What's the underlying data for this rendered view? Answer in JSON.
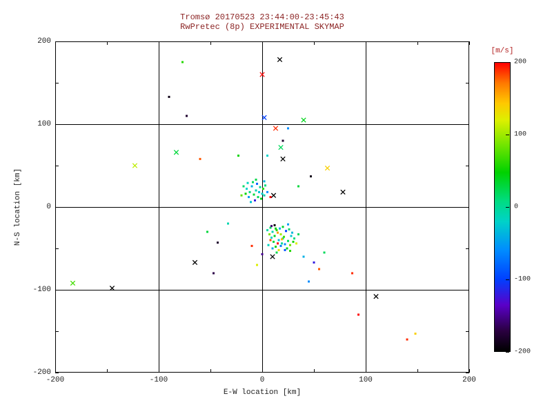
{
  "colors": {
    "background": "#ffffff",
    "title_color": "#8b2323",
    "axis_color": "#1c1c1c",
    "frame_color": "#000000",
    "colorbar_label_color": "#b22222"
  },
  "chart_data": {
    "type": "scatter",
    "title": "Tromsø 20170523 23:44:00-23:45:43",
    "subtitle": "RwPretec (8p) EXPERIMENTAL SKYMAP",
    "xlabel": "E-W location [km]",
    "ylabel": "N-S location [km]",
    "xlim": [
      -200,
      200
    ],
    "ylim": [
      -200,
      200
    ],
    "x_ticks": [
      -200,
      -100,
      0,
      100,
      200
    ],
    "y_ticks": [
      -200,
      -100,
      0,
      100,
      200
    ],
    "grid_lines": [
      -100,
      0,
      100
    ],
    "minor_tick_step": 50,
    "grid": true,
    "legend_position": "none",
    "colorbar": {
      "label": "[m/s]",
      "ticks": [
        200,
        100,
        0,
        -100,
        -200
      ],
      "vmin": -200,
      "vmax": 200
    },
    "colormap_stops": [
      [
        0.0,
        "#000000"
      ],
      [
        0.07,
        "#2a0040"
      ],
      [
        0.16,
        "#5a00c8"
      ],
      [
        0.25,
        "#0040ff"
      ],
      [
        0.35,
        "#008cff"
      ],
      [
        0.45,
        "#00d2c8"
      ],
      [
        0.52,
        "#00dc82"
      ],
      [
        0.62,
        "#00d200"
      ],
      [
        0.72,
        "#78e600"
      ],
      [
        0.8,
        "#dcf000"
      ],
      [
        0.86,
        "#ffc800"
      ],
      [
        0.93,
        "#ff7800"
      ],
      [
        1.0,
        "#ff0000"
      ]
    ],
    "points_format": [
      "x_km",
      "y_km",
      "velocity_ms",
      "marker"
    ],
    "points": [
      [
        17,
        178,
        -200,
        "x"
      ],
      [
        -77,
        175,
        60,
        "d"
      ],
      [
        0,
        160,
        200,
        "x"
      ],
      [
        -90,
        133,
        -190,
        "d"
      ],
      [
        -73,
        110,
        -180,
        "d"
      ],
      [
        2,
        108,
        -100,
        "x"
      ],
      [
        40,
        105,
        40,
        "x"
      ],
      [
        13,
        95,
        190,
        "x"
      ],
      [
        20,
        80,
        -180,
        "d"
      ],
      [
        -83,
        66,
        30,
        "x"
      ],
      [
        -60,
        58,
        180,
        "d"
      ],
      [
        -123,
        50,
        110,
        "x"
      ],
      [
        -23,
        62,
        50,
        "d"
      ],
      [
        18,
        72,
        20,
        "x"
      ],
      [
        20,
        58,
        -200,
        "x"
      ],
      [
        63,
        47,
        140,
        "x"
      ],
      [
        47,
        37,
        -190,
        "d"
      ],
      [
        78,
        18,
        -200,
        "x"
      ],
      [
        35,
        25,
        30,
        "d"
      ],
      [
        5,
        62,
        -20,
        "d"
      ],
      [
        25,
        95,
        -60,
        "d"
      ],
      [
        -15,
        22,
        -20,
        "d"
      ],
      [
        -12,
        18,
        10,
        "d"
      ],
      [
        -10,
        25,
        -40,
        "d"
      ],
      [
        -8,
        15,
        30,
        "d"
      ],
      [
        -6,
        20,
        -10,
        "d"
      ],
      [
        -5,
        28,
        -80,
        "d"
      ],
      [
        -4,
        12,
        20,
        "d"
      ],
      [
        -3,
        18,
        -30,
        "d"
      ],
      [
        -2,
        24,
        0,
        "d"
      ],
      [
        -1,
        10,
        40,
        "d"
      ],
      [
        0,
        16,
        -20,
        "d"
      ],
      [
        1,
        22,
        60,
        "d"
      ],
      [
        2,
        14,
        -10,
        "d"
      ],
      [
        -7,
        8,
        -120,
        "d"
      ],
      [
        -9,
        30,
        20,
        "d"
      ],
      [
        -13,
        12,
        -50,
        "d"
      ],
      [
        3,
        26,
        10,
        "d"
      ],
      [
        -16,
        16,
        50,
        "d"
      ],
      [
        -11,
        6,
        -30,
        "d"
      ],
      [
        5,
        18,
        -60,
        "d"
      ],
      [
        -18,
        25,
        15,
        "d"
      ],
      [
        -14,
        29,
        -15,
        "d"
      ],
      [
        -6,
        33,
        25,
        "d"
      ],
      [
        2,
        31,
        -35,
        "d"
      ],
      [
        -20,
        14,
        80,
        "d"
      ],
      [
        8,
        12,
        200,
        "d"
      ],
      [
        11,
        14,
        -200,
        "x"
      ],
      [
        8,
        -25,
        20,
        "d"
      ],
      [
        10,
        -30,
        -10,
        "d"
      ],
      [
        12,
        -35,
        40,
        "d"
      ],
      [
        14,
        -28,
        60,
        "d"
      ],
      [
        16,
        -40,
        -30,
        "d"
      ],
      [
        18,
        -33,
        100,
        "d"
      ],
      [
        20,
        -38,
        10,
        "d"
      ],
      [
        22,
        -45,
        -60,
        "d"
      ],
      [
        11,
        -42,
        30,
        "d"
      ],
      [
        9,
        -37,
        -20,
        "d"
      ],
      [
        13,
        -48,
        50,
        "d"
      ],
      [
        15,
        -31,
        160,
        "d"
      ],
      [
        17,
        -26,
        -40,
        "d"
      ],
      [
        19,
        -44,
        0,
        "d"
      ],
      [
        21,
        -36,
        70,
        "d"
      ],
      [
        23,
        -29,
        -100,
        "d"
      ],
      [
        25,
        -41,
        20,
        "d"
      ],
      [
        7,
        -33,
        90,
        "d"
      ],
      [
        6,
        -46,
        -15,
        "d"
      ],
      [
        24,
        -50,
        40,
        "d"
      ],
      [
        12,
        -22,
        -200,
        "d"
      ],
      [
        16,
        -52,
        130,
        "d"
      ],
      [
        28,
        -35,
        -25,
        "d"
      ],
      [
        26,
        -27,
        15,
        "d"
      ],
      [
        10,
        -50,
        -45,
        "d"
      ],
      [
        14,
        -55,
        25,
        "d"
      ],
      [
        30,
        -42,
        55,
        "d"
      ],
      [
        8,
        -40,
        180,
        "d"
      ],
      [
        18,
        -47,
        -70,
        "d"
      ],
      [
        20,
        -24,
        35,
        "d"
      ],
      [
        5,
        -28,
        -5,
        "d"
      ],
      [
        27,
        -46,
        85,
        "d"
      ],
      [
        29,
        -31,
        -35,
        "d"
      ],
      [
        31,
        -38,
        10,
        "d"
      ],
      [
        13,
        -26,
        45,
        "d"
      ],
      [
        22,
        -52,
        -90,
        "d"
      ],
      [
        33,
        -44,
        120,
        "d"
      ],
      [
        9,
        -23,
        -160,
        "d"
      ],
      [
        35,
        -33,
        20,
        "d"
      ],
      [
        25,
        -21,
        -50,
        "d"
      ],
      [
        19,
        -39,
        150,
        "d"
      ],
      [
        15,
        -44,
        200,
        "d"
      ],
      [
        -33,
        -20,
        -10,
        "d"
      ],
      [
        -53,
        -30,
        30,
        "d"
      ],
      [
        -43,
        -43,
        -180,
        "d"
      ],
      [
        -10,
        -47,
        190,
        "d"
      ],
      [
        10,
        -60,
        -200,
        "x"
      ],
      [
        -65,
        -67,
        -200,
        "x"
      ],
      [
        27,
        -53,
        60,
        "d"
      ],
      [
        55,
        -75,
        180,
        "d"
      ],
      [
        0,
        -57,
        -150,
        "d"
      ],
      [
        -183,
        -92,
        70,
        "x"
      ],
      [
        -145,
        -98,
        -200,
        "x"
      ],
      [
        -47,
        -80,
        -170,
        "d"
      ],
      [
        50,
        -67,
        -120,
        "d"
      ],
      [
        87,
        -80,
        190,
        "d"
      ],
      [
        110,
        -108,
        -200,
        "x"
      ],
      [
        93,
        -130,
        200,
        "d"
      ],
      [
        140,
        -160,
        190,
        "d"
      ],
      [
        148,
        -153,
        140,
        "d"
      ],
      [
        40,
        -60,
        -40,
        "d"
      ],
      [
        60,
        -55,
        20,
        "d"
      ],
      [
        45,
        -90,
        -60,
        "d"
      ],
      [
        -5,
        -70,
        120,
        "d"
      ]
    ]
  }
}
